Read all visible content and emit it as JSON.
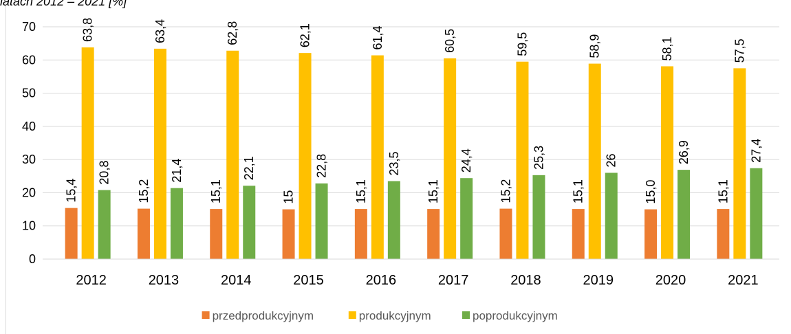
{
  "chart_data": {
    "type": "bar",
    "title": "latach 2012 – 2021 [%]",
    "categories": [
      "2012",
      "2013",
      "2014",
      "2015",
      "2016",
      "2017",
      "2018",
      "2019",
      "2020",
      "2021"
    ],
    "series": [
      {
        "name": "przedprodukcyjnym",
        "color": "#ed7d31",
        "values": [
          15.4,
          15.2,
          15.1,
          15,
          15.1,
          15.1,
          15.2,
          15.1,
          15.0,
          15.1
        ],
        "value_labels": [
          "15,4",
          "15,2",
          "15,1",
          "15",
          "15,1",
          "15,1",
          "15,2",
          "15,1",
          "15,0",
          "15,1"
        ]
      },
      {
        "name": "produkcyjnym",
        "color": "#ffc000",
        "values": [
          63.8,
          63.4,
          62.8,
          62.1,
          61.4,
          60.5,
          59.5,
          58.9,
          58.1,
          57.5
        ],
        "value_labels": [
          "63,8",
          "63,4",
          "62,8",
          "62,1",
          "61,4",
          "60,5",
          "59,5",
          "58,9",
          "58,1",
          "57,5"
        ]
      },
      {
        "name": "poprodukcyjnym",
        "color": "#70ad47",
        "values": [
          20.8,
          21.4,
          22.1,
          22.8,
          23.5,
          24.4,
          25.3,
          26,
          26.9,
          27.4
        ],
        "value_labels": [
          "20,8",
          "21,4",
          "22,1",
          "22,8",
          "23,5",
          "24,4",
          "25,3",
          "26",
          "26,9",
          "27,4"
        ]
      }
    ],
    "ylim": [
      0,
      70
    ],
    "yticks": [
      0,
      10,
      20,
      30,
      40,
      50,
      60,
      70
    ],
    "grid": true,
    "legend": "bottom"
  }
}
